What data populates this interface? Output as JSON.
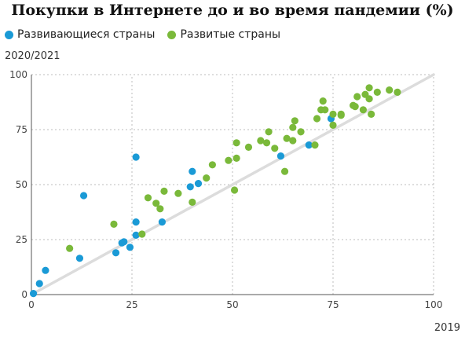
{
  "chart_data": {
    "type": "scatter",
    "title": "Покупки в Интернете до и во время пандемии (%)",
    "xlabel": "2019",
    "ylabel": "2020/2021",
    "xlim": [
      0,
      100
    ],
    "ylim": [
      0,
      100
    ],
    "xticks": [
      "0",
      "25",
      "50",
      "75",
      "100"
    ],
    "yticks": [
      "0",
      "25",
      "50",
      "75",
      "100"
    ],
    "grid": true,
    "legend_position": "top-left",
    "reference_line": "y = x",
    "series": [
      {
        "name": "Развивающиеся страны",
        "color": "#1a9ad6",
        "points": [
          [
            0.5,
            0.5
          ],
          [
            2,
            5
          ],
          [
            3.5,
            11
          ],
          [
            12,
            16.5
          ],
          [
            13,
            45
          ],
          [
            21,
            19
          ],
          [
            22.5,
            23.5
          ],
          [
            23,
            24
          ],
          [
            24.5,
            21.5
          ],
          [
            26,
            33
          ],
          [
            26,
            27
          ],
          [
            26,
            62.5
          ],
          [
            32.5,
            33
          ],
          [
            39.5,
            49
          ],
          [
            40,
            56
          ],
          [
            41.5,
            50.5
          ],
          [
            62,
            63
          ],
          [
            69,
            68
          ],
          [
            74.5,
            80
          ]
        ]
      },
      {
        "name": "Развитые страны",
        "color": "#7ab93a",
        "points": [
          [
            9.5,
            21
          ],
          [
            20.5,
            32
          ],
          [
            27.5,
            27.5
          ],
          [
            29,
            44
          ],
          [
            31,
            41.5
          ],
          [
            32,
            39
          ],
          [
            33,
            47
          ],
          [
            36.5,
            46
          ],
          [
            40,
            42
          ],
          [
            43.5,
            53
          ],
          [
            45,
            59
          ],
          [
            49,
            61
          ],
          [
            50.5,
            47.5
          ],
          [
            51,
            62
          ],
          [
            51,
            69
          ],
          [
            54,
            67
          ],
          [
            57,
            70
          ],
          [
            58.5,
            69
          ],
          [
            59,
            74
          ],
          [
            60.5,
            66.5
          ],
          [
            63,
            56
          ],
          [
            63.5,
            71
          ],
          [
            65,
            76
          ],
          [
            65.5,
            79
          ],
          [
            65,
            70
          ],
          [
            67,
            74
          ],
          [
            70.5,
            68
          ],
          [
            71,
            80
          ],
          [
            72,
            84
          ],
          [
            72.5,
            88
          ],
          [
            73,
            84
          ],
          [
            75,
            82
          ],
          [
            75,
            77
          ],
          [
            77,
            82
          ],
          [
            77,
            81.5
          ],
          [
            80,
            86
          ],
          [
            80.5,
            85.5
          ],
          [
            81,
            90
          ],
          [
            82.5,
            84
          ],
          [
            83,
            91
          ],
          [
            84,
            94
          ],
          [
            84,
            89
          ],
          [
            84.5,
            82
          ],
          [
            86,
            92
          ],
          [
            89,
            93
          ],
          [
            91,
            92
          ]
        ]
      }
    ]
  }
}
